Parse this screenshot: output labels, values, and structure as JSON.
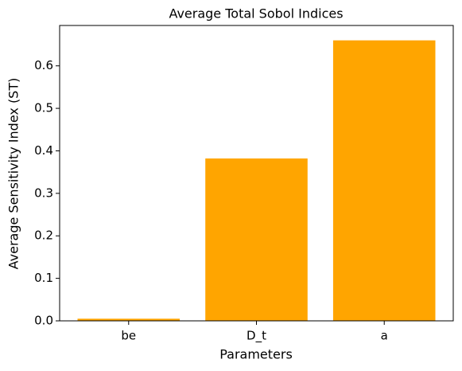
{
  "chart_data": {
    "type": "bar",
    "title": "Average Total Sobol Indices",
    "x_label": "Parameters",
    "y_label": "Average Sensitivity Index (ST)",
    "categories": [
      "be",
      "D_t",
      "a"
    ],
    "values": [
      0.005,
      0.382,
      0.66
    ],
    "color": "#ffa500",
    "ylim": [
      0,
      0.695
    ],
    "yticks": [
      {
        "value": 0,
        "label": "0.0"
      },
      0.1,
      0.2,
      0.3,
      0.4,
      0.5,
      0.6
    ]
  }
}
